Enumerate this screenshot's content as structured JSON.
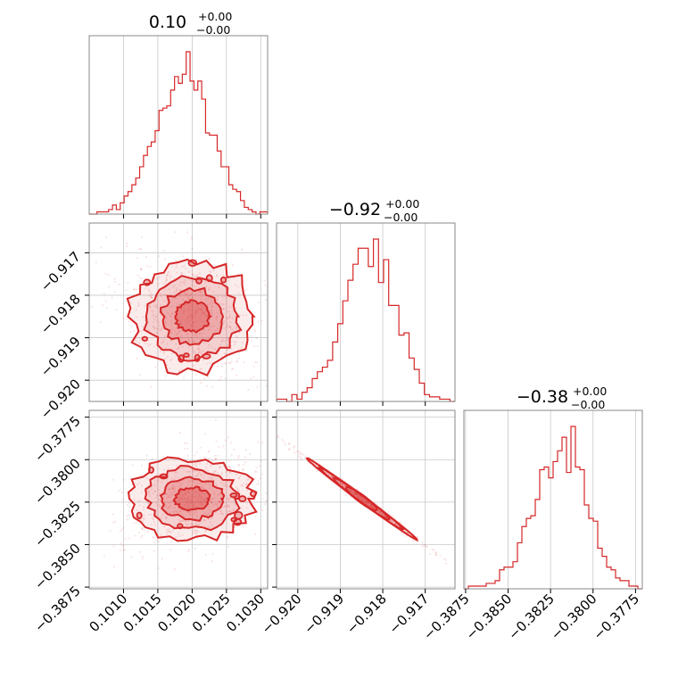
{
  "chart_data": {
    "type": "corner",
    "color": "#d62728",
    "frame_color": "#888888",
    "grid": true,
    "parameters": [
      {
        "title": {
          "value": "0.10",
          "upper": "+0.00",
          "lower": "−0.00"
        },
        "range": [
          0.1005,
          0.1031
        ],
        "center": 0.102,
        "sigma": 0.00045,
        "ticks": [
          0.101,
          0.1015,
          0.102,
          0.1025,
          0.103
        ],
        "tick_labels": [
          "0.1010",
          "0.1015",
          "0.1020",
          "0.1025",
          "0.1030"
        ]
      },
      {
        "title": {
          "value": "−0.92",
          "upper": "+0.00",
          "lower": "−0.00"
        },
        "range": [
          -0.9205,
          -0.9163
        ],
        "center": -0.9185,
        "sigma": 0.00065,
        "ticks": [
          -0.92,
          -0.919,
          -0.918,
          -0.917
        ],
        "tick_labels": [
          "−0.920",
          "−0.919",
          "−0.918",
          "−0.917"
        ]
      },
      {
        "title": {
          "value": "−0.38",
          "upper": "+0.00",
          "lower": "−0.00"
        },
        "range": [
          -0.3876,
          -0.3771
        ],
        "center": -0.3823,
        "sigma": 0.0012,
        "ticks": [
          -0.3875,
          -0.385,
          -0.3825,
          -0.38,
          -0.3775
        ],
        "tick_labels": [
          "−0.3875",
          "−0.3850",
          "−0.3825",
          "−0.3800",
          "−0.3775"
        ]
      }
    ],
    "histograms": [
      {
        "param": 0,
        "bins": [
          0.1005,
          0.1031
        ],
        "counts": [
          0,
          0,
          1,
          1,
          1,
          2,
          4,
          2,
          5,
          8,
          10,
          13,
          16,
          21,
          26,
          30,
          32,
          37,
          46,
          47,
          48,
          55,
          61,
          58,
          62,
          72,
          59,
          55,
          59,
          51,
          36,
          35,
          35,
          28,
          21,
          21,
          13,
          11,
          10,
          6,
          3,
          2,
          1,
          0,
          1,
          1
        ]
      },
      {
        "param": 1,
        "bins": [
          -0.9205,
          -0.9163
        ],
        "counts": [
          1,
          1,
          0,
          3,
          1,
          4,
          6,
          10,
          13,
          15,
          18,
          26,
          34,
          44,
          53,
          60,
          67,
          67,
          59,
          71,
          52,
          62,
          42,
          42,
          29,
          30,
          19,
          14,
          8,
          3,
          2,
          2,
          1,
          1,
          0
        ]
      },
      {
        "param": 2,
        "bins": [
          -0.3876,
          -0.3771
        ],
        "counts": [
          0,
          1,
          1,
          1,
          1,
          2,
          2,
          3,
          7,
          8,
          8,
          10,
          17,
          23,
          26,
          27,
          33,
          44,
          45,
          41,
          47,
          51,
          56,
          43,
          60,
          45,
          44,
          31,
          26,
          25,
          15,
          12,
          8,
          7,
          4,
          3,
          3,
          1,
          1,
          0
        ]
      }
    ],
    "pairs": [
      {
        "x_param": 0,
        "y_param": 1,
        "correlation": -0.25,
        "kind": "scatter-with-contours"
      },
      {
        "x_param": 0,
        "y_param": 2,
        "correlation": 0.35,
        "kind": "scatter-with-contours"
      },
      {
        "x_param": 1,
        "y_param": 2,
        "correlation": -0.995,
        "kind": "scatter-with-contours"
      }
    ]
  }
}
